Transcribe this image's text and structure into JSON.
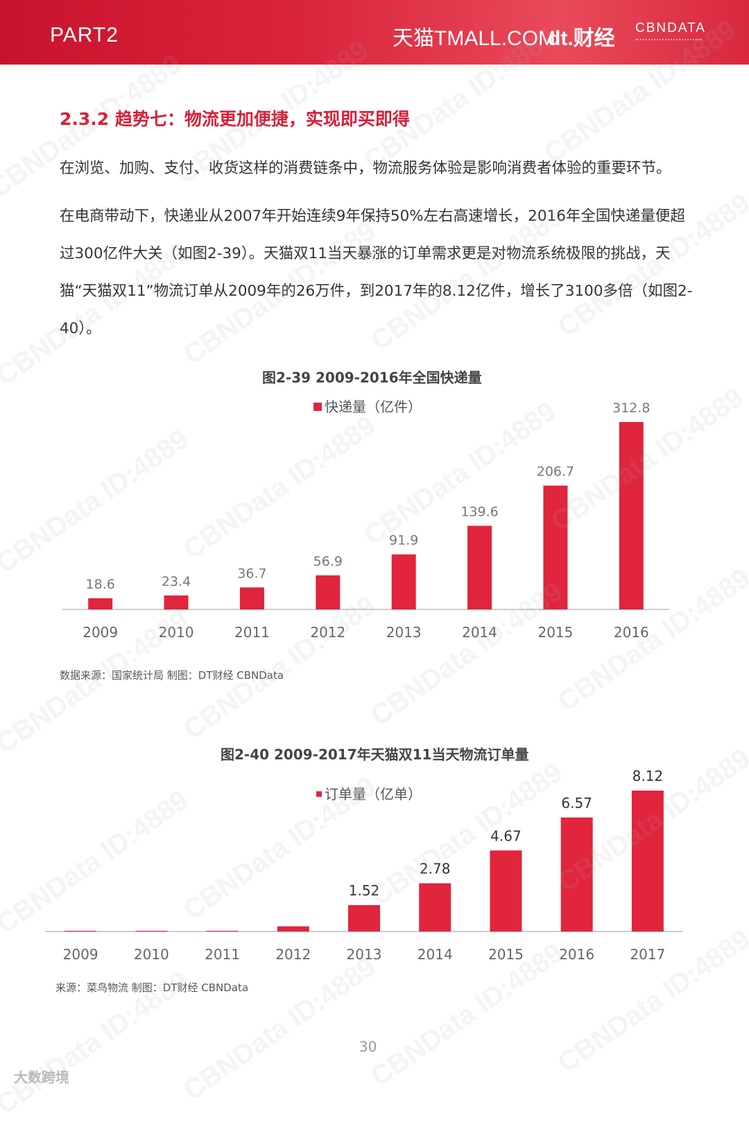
{
  "header": {
    "part": "PART2",
    "logo_tmall": "天猫TMALL.COM",
    "logo_dt": "dt.财经",
    "logo_cbn": "CBNDATA"
  },
  "section": {
    "title": "2.3.2 趋势七：物流更加便捷，实现即买即得",
    "para1": "在浏览、加购、支付、收货这样的消费链条中，物流服务体验是影响消费者体验的重要环节。",
    "para2": "在电商带动下，快递业从2007年开始连续9年保持50%左右高速增长，2016年全国快递量便超过300亿件大关（如图2-39）。天猫双11当天暴涨的订单需求更是对物流系统极限的挑战，天猫“天猫双11”物流订单从2009年的26万件，到2017年的8.12亿件，增长了3100多倍（如图2-40）。"
  },
  "chart_data": [
    {
      "type": "bar",
      "title": "图2-39  2009-2016年全国快递量",
      "categories": [
        "2009",
        "2010",
        "2011",
        "2012",
        "2013",
        "2014",
        "2015",
        "2016"
      ],
      "series": [
        {
          "name": "快递量（亿件）",
          "values": [
            18.6,
            23.4,
            36.7,
            56.9,
            91.9,
            139.6,
            206.7,
            312.8
          ]
        }
      ],
      "data_labels": [
        "18.6",
        "23.4",
        "36.7",
        "56.9",
        "91.9",
        "139.6",
        "206.7",
        "312.8"
      ],
      "ylim": [
        0,
        312.8
      ],
      "legend": "top-center",
      "color": "#e0253d",
      "source": "数据来源：国家统计局    制图：DT财经    CBNData"
    },
    {
      "type": "bar",
      "title": "图2-40  2009-2017年天猫双11当天物流订单量",
      "categories": [
        "2009",
        "2010",
        "2011",
        "2012",
        "2013",
        "2014",
        "2015",
        "2016",
        "2017"
      ],
      "series": [
        {
          "name": "订单量（亿单）",
          "values": [
            0.0026,
            0.005,
            0.02,
            0.3,
            1.52,
            2.78,
            4.67,
            6.57,
            8.12
          ]
        }
      ],
      "data_labels": [
        "",
        "",
        "",
        "",
        "1.52",
        "2.78",
        "4.67",
        "6.57",
        "8.12"
      ],
      "ylim": [
        0,
        8.12
      ],
      "legend": "top-center",
      "color": "#e0253d",
      "source": "来源：菜鸟物流      制图：DT财经    CBNData"
    }
  ],
  "footer": {
    "page": "30",
    "brand": "大数跨境"
  },
  "watermark": "CBNData ID:4889"
}
